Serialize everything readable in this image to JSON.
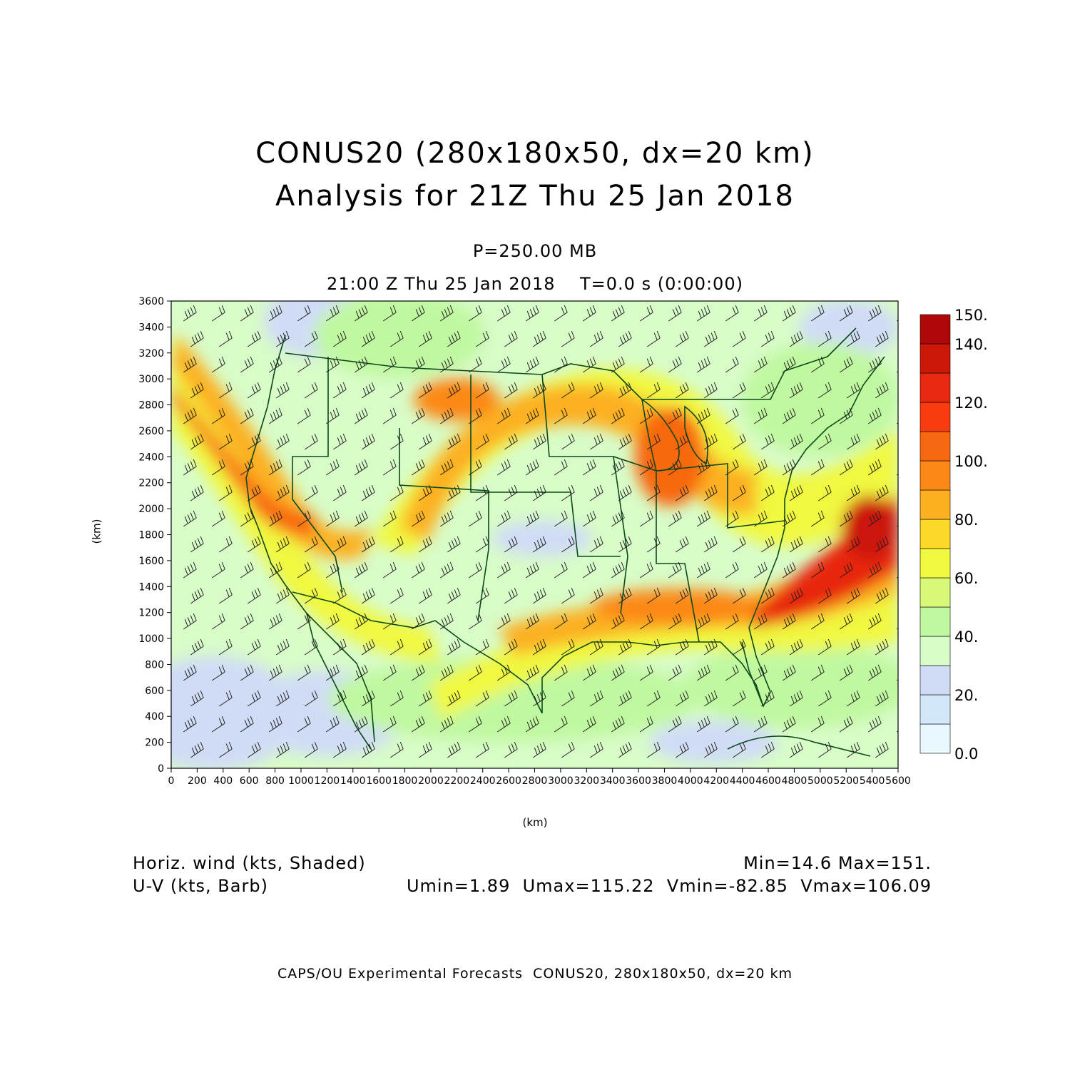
{
  "title": {
    "line1": "CONUS20 (280x180x50, dx=20 km)",
    "line2": "Analysis for 21Z Thu 25 Jan 2018"
  },
  "level": "P=250.00 MB",
  "valid_time": "21:00 Z Thu 25 Jan 2018    T=0.0 s (0:00:00)",
  "axes": {
    "x_label": "(km)",
    "y_label": "(km)",
    "x_ticks": [
      "0",
      "200",
      "400",
      "600",
      "800",
      "1000",
      "1200",
      "1400",
      "1600",
      "1800",
      "2000",
      "2200",
      "2400",
      "2600",
      "2800",
      "3000",
      "3200",
      "3400",
      "3600",
      "3800",
      "4000",
      "4200",
      "4400",
      "4600",
      "4800",
      "5000",
      "5200",
      "5400",
      "5600"
    ],
    "y_ticks": [
      "0",
      "200",
      "400",
      "600",
      "800",
      "1000",
      "1200",
      "1400",
      "1600",
      "1800",
      "2000",
      "2200",
      "2400",
      "2600",
      "2800",
      "3000",
      "3200",
      "3400",
      "3600"
    ],
    "x_range": [
      0,
      5600
    ],
    "y_range": [
      0,
      3600
    ]
  },
  "colorbar": {
    "labels": [
      "0.0",
      "20.",
      "40.",
      "60.",
      "80.",
      "100.",
      "120.",
      "140.",
      "150."
    ],
    "levels": [
      0,
      10,
      20,
      30,
      40,
      50,
      60,
      70,
      80,
      90,
      100,
      110,
      120,
      130,
      140,
      150
    ],
    "colors": [
      "#e8f8fc",
      "#d2e8f8",
      "#d0dcf6",
      "#d8fcc8",
      "#c0f8a0",
      "#d8f878",
      "#f0f840",
      "#fcd828",
      "#fcb020",
      "#fc8818",
      "#f86810",
      "#f83c10",
      "#e82810",
      "#cc1808",
      "#b00808"
    ]
  },
  "field": {
    "name": "Horiz. wind (kts, Shaded)",
    "overlay": "U-V (kts, Barb)",
    "minmax": "Min=14.6 Max=151.",
    "uv_stats": "Umin=1.89  Umax=115.22  Vmin=-82.85  Vmax=106.09"
  },
  "footer": "CAPS/OU Experimental Forecasts  CONUS20, 280x180x50, dx=20 km",
  "colors": {
    "map_lines": "#0a4a1a",
    "barbs": "#202020"
  }
}
